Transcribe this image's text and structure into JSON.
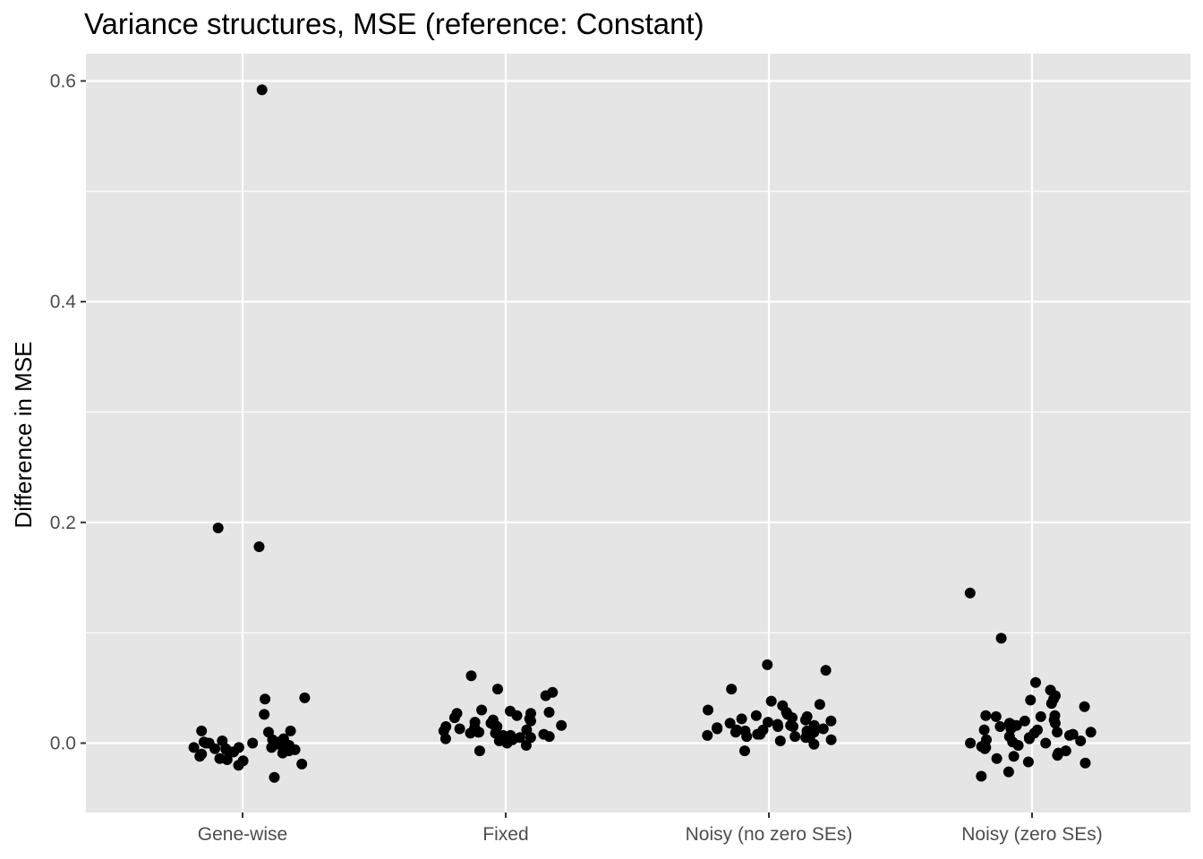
{
  "chart_data": {
    "type": "scatter",
    "title": "Variance structures, MSE (reference: Constant)",
    "xlabel": "",
    "ylabel": "Difference in MSE",
    "categories": [
      "Gene-wise",
      "Fixed",
      "Noisy (no zero SEs)",
      "Noisy (zero SEs)"
    ],
    "y_ticks": [
      "0.0",
      "0.2",
      "0.4",
      "0.6"
    ],
    "ylim": [
      -0.063,
      0.6
    ],
    "grid": true,
    "colors": {
      "panel": "#e5e5e5",
      "grid": "#ffffff",
      "point": "#000000",
      "tick": "#4d4d4d"
    },
    "points": [
      {
        "category": "Gene-wise",
        "values": [
          0.592,
          0.195,
          0.178,
          0.041,
          0.04,
          0.026,
          0.011,
          0.011,
          0.01,
          0.004,
          0.003,
          0.002,
          0.001,
          0.001,
          0.0,
          0.0,
          0.0,
          -0.001,
          -0.002,
          -0.003,
          -0.004,
          -0.004,
          -0.004,
          -0.005,
          -0.005,
          -0.006,
          -0.006,
          -0.007,
          -0.008,
          -0.008,
          -0.009,
          -0.01,
          -0.012,
          -0.014,
          -0.015,
          -0.016,
          -0.019,
          -0.02,
          -0.031
        ]
      },
      {
        "category": "Fixed",
        "values": [
          0.061,
          0.049,
          0.046,
          0.043,
          0.03,
          0.029,
          0.028,
          0.027,
          0.027,
          0.025,
          0.023,
          0.022,
          0.021,
          0.02,
          0.019,
          0.018,
          0.017,
          0.016,
          0.016,
          0.015,
          0.015,
          0.014,
          0.013,
          0.012,
          0.011,
          0.01,
          0.01,
          0.009,
          0.009,
          0.008,
          0.007,
          0.007,
          0.006,
          0.005,
          0.005,
          0.004,
          0.003,
          0.002,
          0.0,
          -0.002,
          -0.007
        ]
      },
      {
        "category": "Noisy (no zero SEs)",
        "values": [
          0.071,
          0.066,
          0.049,
          0.038,
          0.035,
          0.034,
          0.03,
          0.028,
          0.026,
          0.025,
          0.024,
          0.023,
          0.022,
          0.021,
          0.02,
          0.019,
          0.018,
          0.017,
          0.016,
          0.016,
          0.015,
          0.015,
          0.014,
          0.013,
          0.013,
          0.012,
          0.012,
          0.011,
          0.011,
          0.01,
          0.01,
          0.009,
          0.008,
          0.008,
          0.007,
          0.006,
          0.006,
          0.005,
          0.005,
          0.003,
          0.002,
          -0.001,
          -0.007
        ]
      },
      {
        "category": "Noisy (zero SEs)",
        "values": [
          0.136,
          0.095,
          0.055,
          0.048,
          0.043,
          0.04,
          0.039,
          0.036,
          0.033,
          0.025,
          0.025,
          0.024,
          0.024,
          0.021,
          0.02,
          0.018,
          0.018,
          0.016,
          0.016,
          0.015,
          0.013,
          0.012,
          0.012,
          0.01,
          0.01,
          0.009,
          0.008,
          0.007,
          0.006,
          0.005,
          0.004,
          0.003,
          0.002,
          0.001,
          0.0,
          0.0,
          -0.002,
          -0.003,
          -0.004,
          -0.004,
          -0.005,
          -0.007,
          -0.009,
          -0.011,
          -0.012,
          -0.014,
          -0.017,
          -0.018,
          -0.026,
          -0.03
        ]
      }
    ]
  }
}
